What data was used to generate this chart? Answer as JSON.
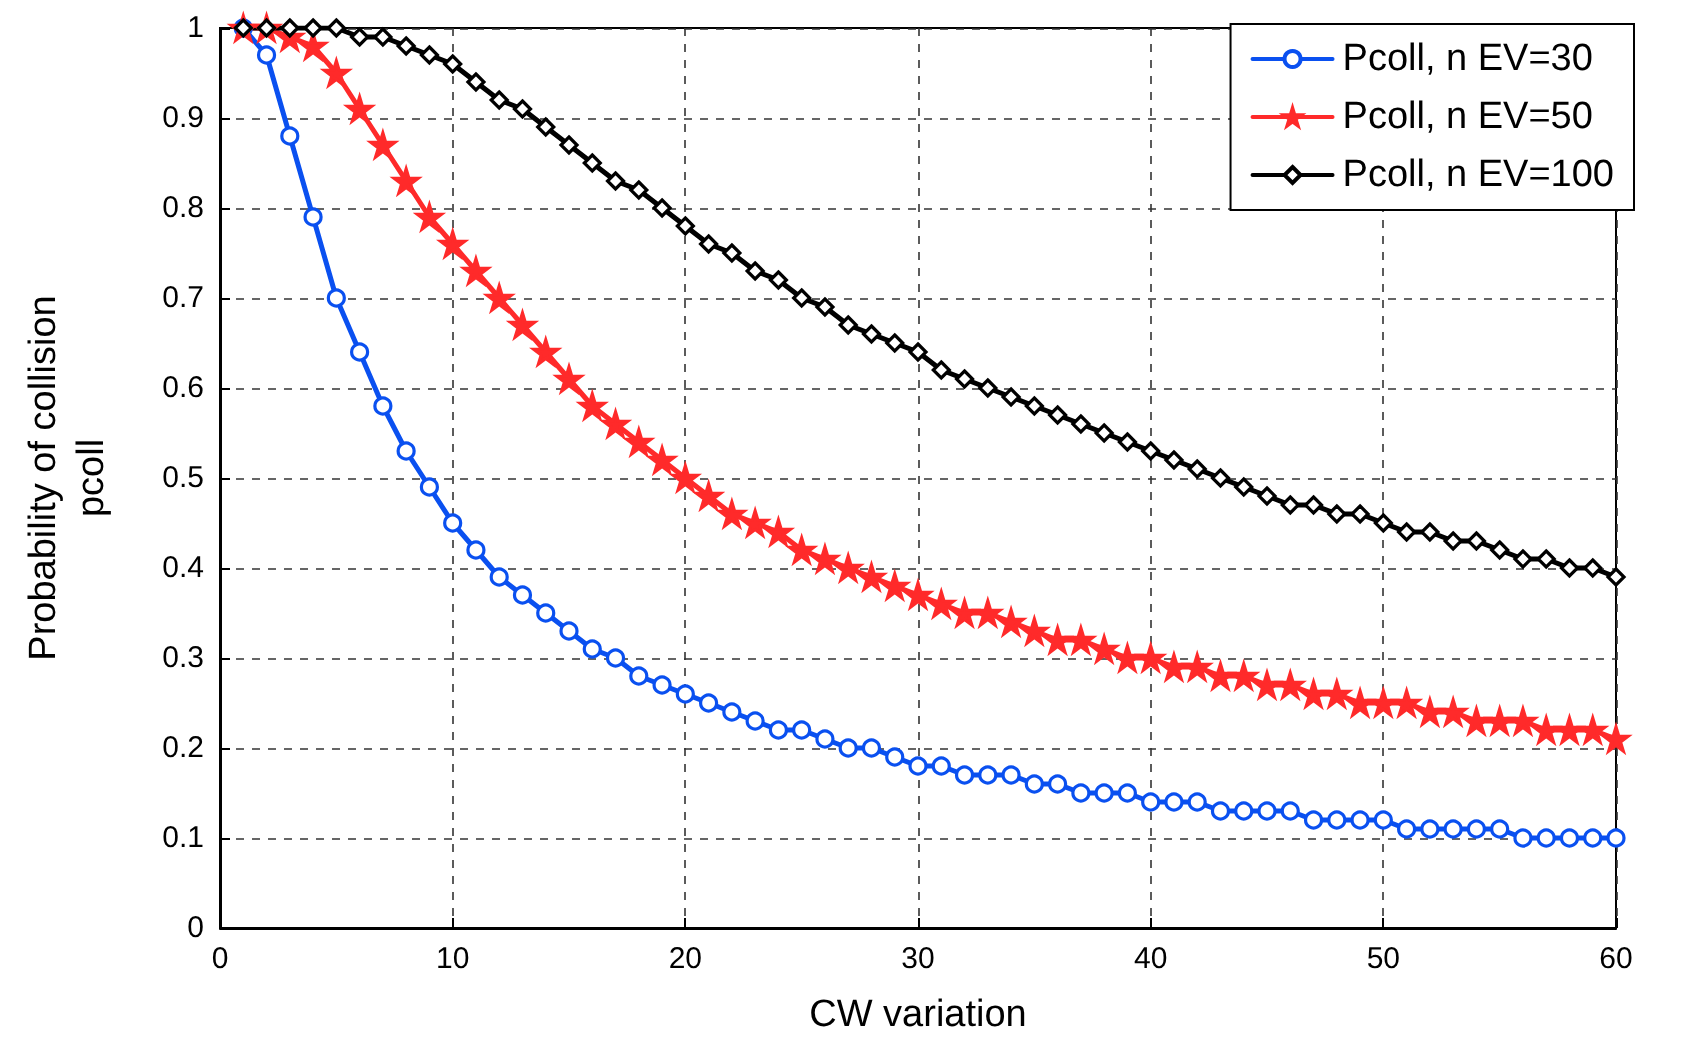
{
  "chart_data": {
    "type": "line",
    "xlabel": "CW variation",
    "ylabel": "Probability of collision\npcoll",
    "x": [
      1,
      2,
      3,
      4,
      5,
      6,
      7,
      8,
      9,
      10,
      11,
      12,
      13,
      14,
      15,
      16,
      17,
      18,
      19,
      20,
      21,
      22,
      23,
      24,
      25,
      26,
      27,
      28,
      29,
      30,
      31,
      32,
      33,
      34,
      35,
      36,
      37,
      38,
      39,
      40,
      41,
      42,
      43,
      44,
      45,
      46,
      47,
      48,
      49,
      50,
      51,
      52,
      53,
      54,
      55,
      56,
      57,
      58,
      59,
      60
    ],
    "series": [
      {
        "name": "Pcoll, n EV=30",
        "color": "#0a50f0",
        "marker": "circle",
        "values": [
          1.0,
          0.97,
          0.88,
          0.79,
          0.7,
          0.64,
          0.58,
          0.53,
          0.49,
          0.45,
          0.42,
          0.39,
          0.37,
          0.35,
          0.33,
          0.31,
          0.3,
          0.28,
          0.27,
          0.26,
          0.25,
          0.24,
          0.23,
          0.22,
          0.22,
          0.21,
          0.2,
          0.2,
          0.19,
          0.18,
          0.18,
          0.17,
          0.17,
          0.17,
          0.16,
          0.16,
          0.15,
          0.15,
          0.15,
          0.14,
          0.14,
          0.14,
          0.13,
          0.13,
          0.13,
          0.13,
          0.12,
          0.12,
          0.12,
          0.12,
          0.11,
          0.11,
          0.11,
          0.11,
          0.11,
          0.1,
          0.1,
          0.1,
          0.1,
          0.1
        ]
      },
      {
        "name": "Pcoll, n EV=50",
        "color": "#ff2a2a",
        "marker": "star",
        "values": [
          1.0,
          1.0,
          0.99,
          0.98,
          0.95,
          0.91,
          0.87,
          0.83,
          0.79,
          0.76,
          0.73,
          0.7,
          0.67,
          0.64,
          0.61,
          0.58,
          0.56,
          0.54,
          0.52,
          0.5,
          0.48,
          0.46,
          0.45,
          0.44,
          0.42,
          0.41,
          0.4,
          0.39,
          0.38,
          0.37,
          0.36,
          0.35,
          0.35,
          0.34,
          0.33,
          0.32,
          0.32,
          0.31,
          0.3,
          0.3,
          0.29,
          0.29,
          0.28,
          0.28,
          0.27,
          0.27,
          0.26,
          0.26,
          0.25,
          0.25,
          0.25,
          0.24,
          0.24,
          0.23,
          0.23,
          0.23,
          0.22,
          0.22,
          0.22,
          0.21
        ]
      },
      {
        "name": "Pcoll, n EV=100",
        "color": "#000000",
        "marker": "diamond",
        "values": [
          1.0,
          1.0,
          1.0,
          1.0,
          1.0,
          0.99,
          0.99,
          0.98,
          0.97,
          0.96,
          0.94,
          0.92,
          0.91,
          0.89,
          0.87,
          0.85,
          0.83,
          0.82,
          0.8,
          0.78,
          0.76,
          0.75,
          0.73,
          0.72,
          0.7,
          0.69,
          0.67,
          0.66,
          0.65,
          0.64,
          0.62,
          0.61,
          0.6,
          0.59,
          0.58,
          0.57,
          0.56,
          0.55,
          0.54,
          0.53,
          0.52,
          0.51,
          0.5,
          0.49,
          0.48,
          0.47,
          0.47,
          0.46,
          0.46,
          0.45,
          0.44,
          0.44,
          0.43,
          0.43,
          0.42,
          0.41,
          0.41,
          0.4,
          0.4,
          0.39
        ]
      }
    ],
    "xlim": [
      0,
      60
    ],
    "xticks": [
      0,
      10,
      20,
      30,
      40,
      50,
      60
    ],
    "ylim": [
      0,
      1
    ],
    "yticks": [
      0,
      0.1,
      0.2,
      0.3,
      0.4,
      0.5,
      0.6,
      0.7,
      0.8,
      0.9,
      1
    ],
    "grid": true,
    "legend": "top right",
    "line_style": "solid"
  }
}
